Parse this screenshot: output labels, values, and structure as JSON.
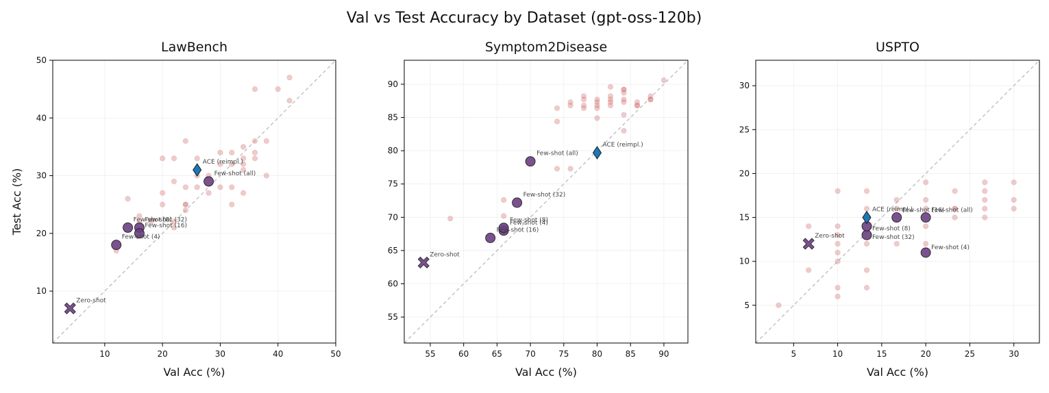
{
  "figure": {
    "title": "Val vs Test Accuracy by Dataset (gpt-oss-120b)"
  },
  "colors": {
    "background_points": "#d67c7c",
    "method_points": "#6a3f82",
    "ace_marker": "#1f77b4",
    "diagonal": "#bbbbbb",
    "grid": "#eeeeee",
    "annotation": "#444444"
  },
  "chart_data": [
    {
      "type": "scatter",
      "title": "LawBench",
      "xlabel": "Val Acc (%)",
      "ylabel": "Test Acc (%)",
      "xlim": [
        1,
        50
      ],
      "ylim": [
        1,
        50
      ],
      "xticks": [
        10,
        20,
        30,
        40,
        50
      ],
      "yticks": [
        10,
        20,
        30,
        40,
        50
      ],
      "grid": true,
      "diagonal": true,
      "background_points": [
        [
          12,
          17
        ],
        [
          14,
          26
        ],
        [
          16,
          23
        ],
        [
          16,
          22
        ],
        [
          18,
          22
        ],
        [
          20,
          33
        ],
        [
          20,
          27
        ],
        [
          20,
          25
        ],
        [
          22,
          33
        ],
        [
          22,
          29
        ],
        [
          22,
          22
        ],
        [
          22,
          21
        ],
        [
          24,
          36
        ],
        [
          24,
          28
        ],
        [
          24,
          25
        ],
        [
          24,
          25
        ],
        [
          24,
          24
        ],
        [
          26,
          33
        ],
        [
          26,
          30
        ],
        [
          26,
          28
        ],
        [
          28,
          30
        ],
        [
          28,
          27
        ],
        [
          30,
          34
        ],
        [
          30,
          32
        ],
        [
          30,
          28
        ],
        [
          32,
          34
        ],
        [
          32,
          32
        ],
        [
          32,
          28
        ],
        [
          32,
          25
        ],
        [
          34,
          35
        ],
        [
          34,
          33
        ],
        [
          34,
          32
        ],
        [
          34,
          31
        ],
        [
          34,
          27
        ],
        [
          36,
          45
        ],
        [
          36,
          36
        ],
        [
          36,
          34
        ],
        [
          36,
          33
        ],
        [
          38,
          36
        ],
        [
          38,
          30
        ],
        [
          40,
          45
        ],
        [
          42,
          47
        ],
        [
          42,
          43
        ]
      ],
      "methods": [
        {
          "label": "Zero-shot",
          "x": 4,
          "y": 7,
          "marker": "X"
        },
        {
          "label": "Few-shot (4)",
          "x": 12,
          "y": 18,
          "marker": "o"
        },
        {
          "label": "Few-shot (8)",
          "x": 14,
          "y": 21,
          "marker": "o"
        },
        {
          "label": "Few-shot (32)",
          "x": 16,
          "y": 21,
          "marker": "o"
        },
        {
          "label": "Few-shot (16)",
          "x": 16,
          "y": 20,
          "marker": "o"
        },
        {
          "label": "Few-shot (all)",
          "x": 28,
          "y": 29,
          "marker": "o"
        },
        {
          "label": "ACE (reimpl.)",
          "x": 26,
          "y": 31,
          "marker": "d"
        }
      ]
    },
    {
      "type": "scatter",
      "title": "Symptom2Disease",
      "xlabel": "Val Acc (%)",
      "ylabel": "",
      "xlim": [
        51.1,
        93.6
      ],
      "ylim": [
        51.1,
        93.6
      ],
      "xticks": [
        55,
        60,
        65,
        70,
        75,
        80,
        85,
        90
      ],
      "yticks": [
        55,
        60,
        65,
        70,
        75,
        80,
        85,
        90
      ],
      "grid": true,
      "diagonal": true,
      "background_points": [
        [
          58,
          69.8
        ],
        [
          66,
          72.6
        ],
        [
          66,
          70.2
        ],
        [
          74,
          86.4
        ],
        [
          74,
          84.4
        ],
        [
          74,
          77.3
        ],
        [
          76,
          87.3
        ],
        [
          76,
          86.8
        ],
        [
          76,
          77.3
        ],
        [
          78,
          88.2
        ],
        [
          78,
          87.7
        ],
        [
          78,
          86.8
        ],
        [
          78,
          86.4
        ],
        [
          80,
          87.7
        ],
        [
          80,
          87.3
        ],
        [
          80,
          86.8
        ],
        [
          80,
          86.4
        ],
        [
          80,
          84.9
        ],
        [
          82,
          89.6
        ],
        [
          82,
          88.2
        ],
        [
          82,
          87.7
        ],
        [
          82,
          87.3
        ],
        [
          82,
          86.8
        ],
        [
          84,
          89.2
        ],
        [
          84,
          89.2
        ],
        [
          84,
          88.7
        ],
        [
          84,
          87.7
        ],
        [
          84,
          87.3
        ],
        [
          84,
          85.4
        ],
        [
          84,
          83.0
        ],
        [
          86,
          87.3
        ],
        [
          86,
          86.8
        ],
        [
          86,
          86.8
        ],
        [
          88,
          88.2
        ],
        [
          88,
          87.7
        ],
        [
          88,
          87.7
        ],
        [
          90,
          90.6
        ]
      ],
      "methods": [
        {
          "label": "Zero-shot",
          "x": 54,
          "y": 63.2,
          "marker": "X"
        },
        {
          "label": "Few-shot (16)",
          "x": 64,
          "y": 66.9,
          "marker": "o"
        },
        {
          "label": "Few-shot (4)",
          "x": 66,
          "y": 68.0,
          "marker": "o"
        },
        {
          "label": "Few-shot (8)",
          "x": 66,
          "y": 68.4,
          "marker": "o"
        },
        {
          "label": "Few-shot (32)",
          "x": 68,
          "y": 72.2,
          "marker": "o"
        },
        {
          "label": "Few-shot (all)",
          "x": 70,
          "y": 78.4,
          "marker": "o"
        },
        {
          "label": "ACE (reimpl.)",
          "x": 80,
          "y": 79.7,
          "marker": "d"
        }
      ]
    },
    {
      "type": "scatter",
      "title": "USPTO",
      "xlabel": "Val Acc (%)",
      "ylabel": "",
      "xlim": [
        0.7,
        32.9
      ],
      "ylim": [
        0.7,
        32.9
      ],
      "xticks": [
        5,
        10,
        15,
        20,
        25,
        30
      ],
      "yticks": [
        5,
        10,
        15,
        20,
        25,
        30
      ],
      "grid": true,
      "diagonal": true,
      "background_points": [
        [
          3.3,
          5
        ],
        [
          6.7,
          14
        ],
        [
          6.7,
          9
        ],
        [
          10,
          18
        ],
        [
          10,
          14
        ],
        [
          10,
          13
        ],
        [
          10,
          12
        ],
        [
          10,
          11
        ],
        [
          10,
          10
        ],
        [
          10,
          7
        ],
        [
          10,
          6
        ],
        [
          13.3,
          18
        ],
        [
          13.3,
          16
        ],
        [
          13.3,
          12
        ],
        [
          13.3,
          9
        ],
        [
          13.3,
          7
        ],
        [
          16.7,
          17
        ],
        [
          16.7,
          16
        ],
        [
          16.7,
          12
        ],
        [
          20,
          19
        ],
        [
          20,
          17
        ],
        [
          20,
          16
        ],
        [
          20,
          14
        ],
        [
          20,
          12
        ],
        [
          23.3,
          18
        ],
        [
          23.3,
          16
        ],
        [
          23.3,
          16
        ],
        [
          23.3,
          15
        ],
        [
          26.7,
          19
        ],
        [
          26.7,
          18
        ],
        [
          26.7,
          17
        ],
        [
          26.7,
          16
        ],
        [
          26.7,
          15
        ],
        [
          30,
          19
        ],
        [
          30,
          17
        ],
        [
          30,
          16
        ]
      ],
      "methods": [
        {
          "label": "Zero-shot",
          "x": 6.7,
          "y": 12,
          "marker": "X"
        },
        {
          "label": "Few-shot (4)",
          "x": 20,
          "y": 11,
          "marker": "o"
        },
        {
          "label": "Few-shot (32)",
          "x": 13.3,
          "y": 13,
          "marker": "o"
        },
        {
          "label": "Few-shot (8)",
          "x": 13.3,
          "y": 14,
          "marker": "o"
        },
        {
          "label": "Few-shot (16)",
          "x": 16.7,
          "y": 15,
          "marker": "o"
        },
        {
          "label": "Few-shot (all)",
          "x": 20,
          "y": 15,
          "marker": "o"
        },
        {
          "label": "ACE (reimpl.)",
          "x": 13.3,
          "y": 15,
          "marker": "d"
        }
      ]
    }
  ]
}
